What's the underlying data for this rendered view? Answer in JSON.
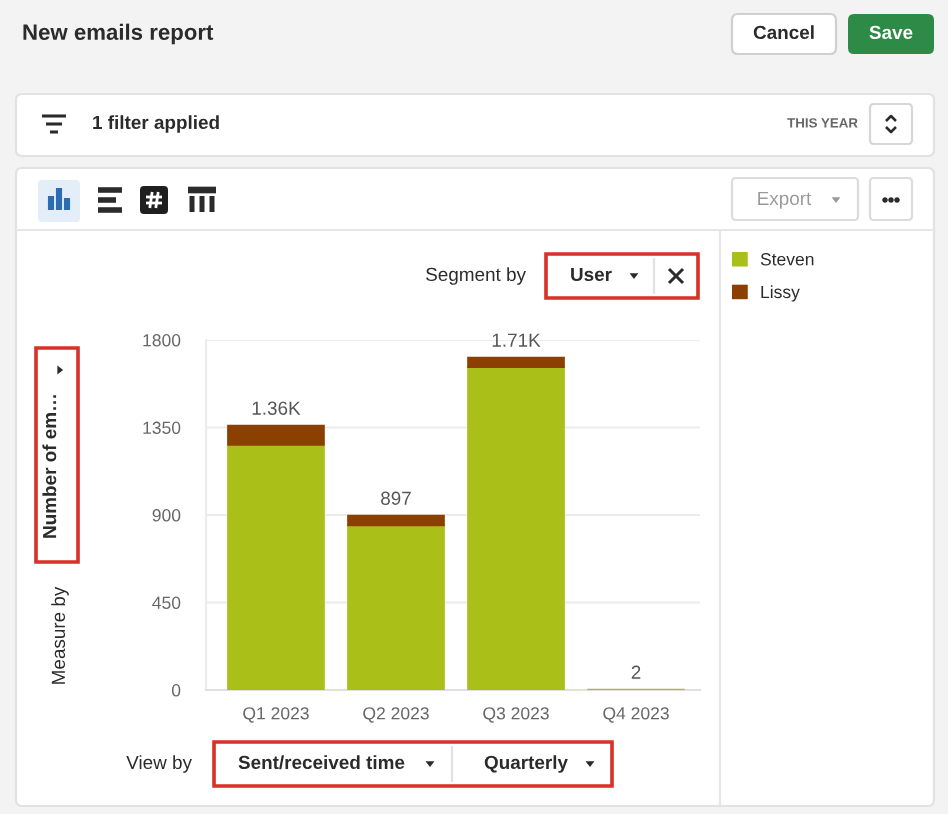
{
  "chart_data": {
    "type": "bar",
    "title": "New emails report",
    "ylabel": "Number of em…",
    "categories": [
      "Q1 2023",
      "Q2 2023",
      "Q3 2023",
      "Q4 2023"
    ],
    "series": [
      {
        "name": "Steven",
        "color": "#abbf19",
        "values": [
          1260,
          847,
          1660,
          2
        ]
      },
      {
        "name": "Lissy",
        "color": "#8b4000",
        "values": [
          100,
          50,
          50,
          null
        ]
      }
    ],
    "stacked": true,
    "totals": [
      "1.36K",
      "897",
      "1.71K",
      "2"
    ],
    "ylim": [
      0,
      1800
    ],
    "yticks": [
      0,
      450,
      900,
      1350,
      1800
    ],
    "grid": "y",
    "legend": "top right",
    "annotations": [
      "Cancel",
      "Save",
      "1 filter applied",
      "THIS YEAR",
      "Export",
      "Segment by",
      "User",
      "Measure by",
      "View by",
      "Sent/received time",
      "Quarterly"
    ]
  }
}
